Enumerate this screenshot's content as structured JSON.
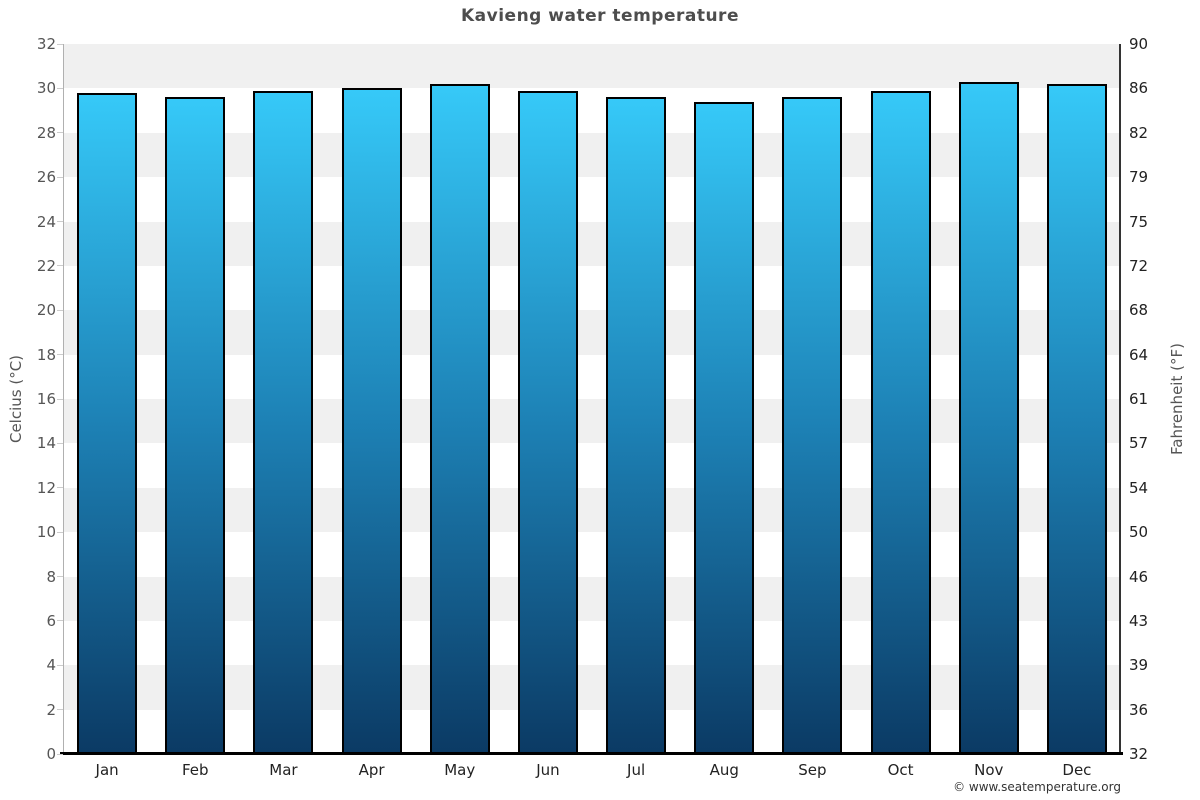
{
  "page": {
    "title": "Kavieng water temperature"
  },
  "footer": {
    "copyright": "© www.seatemperature.org"
  },
  "chart_data": {
    "type": "bar",
    "title": "Kavieng water temperature",
    "categories": [
      "Jan",
      "Feb",
      "Mar",
      "Apr",
      "May",
      "Jun",
      "Jul",
      "Aug",
      "Sep",
      "Oct",
      "Nov",
      "Dec"
    ],
    "values": [
      29.8,
      29.6,
      29.9,
      30.0,
      30.2,
      29.9,
      29.6,
      29.4,
      29.6,
      29.9,
      30.3,
      30.2
    ],
    "unit": "°C",
    "ylabel_left": "Celcius (°C)",
    "ylabel_right": "Fahrenheit (°F)",
    "y_left_ticks": [
      32,
      30,
      28,
      26,
      24,
      22,
      20,
      18,
      16,
      14,
      12,
      10,
      8,
      6,
      4,
      2,
      0
    ],
    "y_right_ticks": [
      90,
      86,
      82,
      79,
      75,
      72,
      68,
      64,
      61,
      57,
      54,
      50,
      46,
      43,
      39,
      36,
      32
    ],
    "ylim": [
      0,
      32
    ],
    "xlabel": "",
    "legend": "none",
    "grid": "horizontal zebra bands every 2°C",
    "colors": {
      "bar_gradient_top": "#36c9f8",
      "bar_gradient_mid": "#1d81b5",
      "bar_gradient_bottom": "#0b3a64",
      "bar_border": "#000000",
      "band_gray": "#f0f0f0",
      "band_white": "#ffffff"
    }
  }
}
